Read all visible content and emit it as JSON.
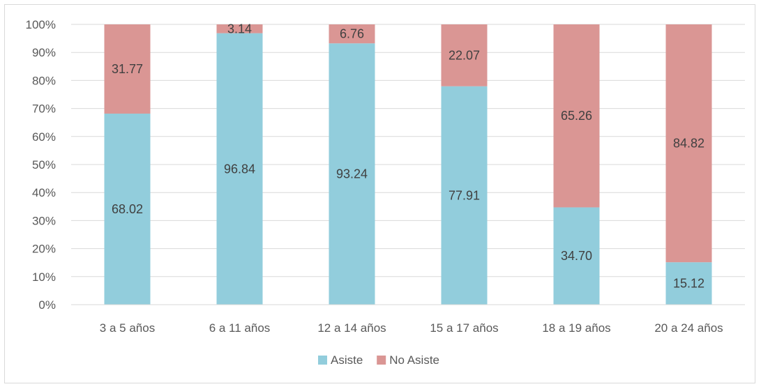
{
  "chart_data": {
    "type": "bar",
    "stacked": true,
    "percent": true,
    "categories": [
      "3 a 5 años",
      "6 a 11 años",
      "12 a 14 años",
      "15 a 17 años",
      "18 a 19 años",
      "20 a 24 años"
    ],
    "series": [
      {
        "name": "Asiste",
        "values": [
          68.02,
          96.84,
          93.24,
          77.91,
          34.7,
          15.12
        ],
        "labels": [
          "68.02",
          "96.84",
          "93.24",
          "77.91",
          "34.70",
          "15.12"
        ],
        "color": "#92cddc"
      },
      {
        "name": "No Asiste",
        "values": [
          31.77,
          3.14,
          6.76,
          22.07,
          65.26,
          84.82
        ],
        "labels": [
          "31.77",
          "3.14",
          "6.76",
          "22.07",
          "65.26",
          "84.82"
        ],
        "color": "#da9694"
      }
    ],
    "ylim": [
      0,
      100
    ],
    "yticks": [
      "0%",
      "10%",
      "20%",
      "30%",
      "40%",
      "50%",
      "60%",
      "70%",
      "80%",
      "90%",
      "100%"
    ],
    "grid": true,
    "legend": "bottom-center",
    "title": "",
    "xlabel": "",
    "ylabel": ""
  },
  "colors": {
    "grid": "#d9d9d9",
    "axis": "#d9d9d9"
  }
}
